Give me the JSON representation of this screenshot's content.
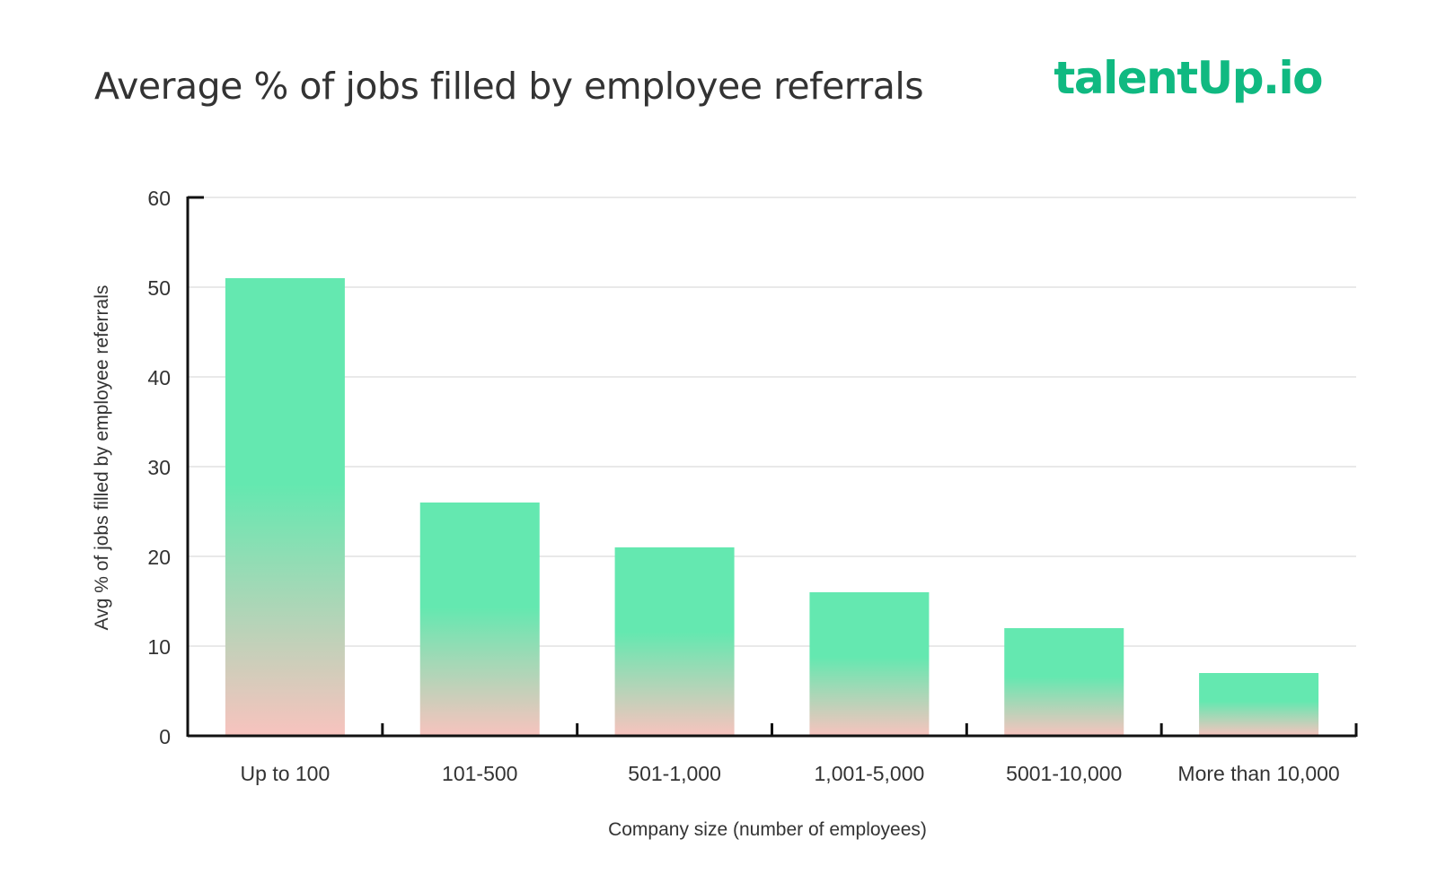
{
  "header": {
    "title": "Average % of jobs filled by employee referrals",
    "logo_text": "talentUp.io"
  },
  "colors": {
    "bar_top": "#64e8b0",
    "bar_bottom": "#f8c3be",
    "logo": "#10b981",
    "axis": "#111111",
    "grid": "#e2e2e2"
  },
  "chart_data": {
    "type": "bar",
    "title": "Average % of jobs filled by employee referrals",
    "xlabel": "Company size (number of employees)",
    "ylabel": "Avg % of jobs filled by employee referrals",
    "categories": [
      "Up to 100",
      "101-500",
      "501-1,000",
      "1,001-5,000",
      "5001-10,000",
      "More than 10,000"
    ],
    "values": [
      51,
      26,
      21,
      16,
      12,
      7
    ],
    "ylim": [
      0,
      60
    ],
    "yticks": [
      0,
      10,
      20,
      30,
      40,
      50,
      60
    ],
    "grid": true,
    "legend": "none"
  }
}
